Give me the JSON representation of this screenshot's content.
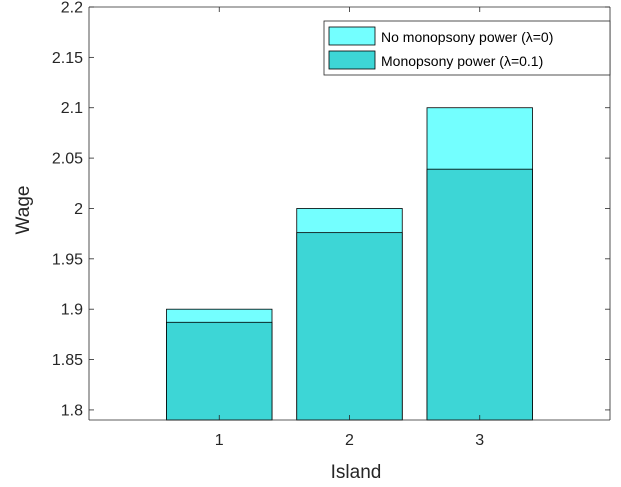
{
  "chart_data": {
    "type": "bar",
    "title": "",
    "xlabel": "Island",
    "ylabel": "Wage",
    "categories": [
      "1",
      "2",
      "3"
    ],
    "ylim": [
      1.79,
      2.2
    ],
    "yticks": [
      "1.8",
      "1.85",
      "1.9",
      "1.95",
      "2",
      "2.05",
      "2.1",
      "2.15",
      "2.2"
    ],
    "grid": false,
    "legend_position": "top-right",
    "series": [
      {
        "name": "No monopsony power (λ=0)",
        "values": [
          1.9,
          2.0,
          2.1
        ],
        "color": "#73ffff"
      },
      {
        "name": "Monopsony power (λ=0.1)",
        "values": [
          1.887,
          1.976,
          2.039
        ],
        "color": "#3dd6d6"
      }
    ]
  }
}
